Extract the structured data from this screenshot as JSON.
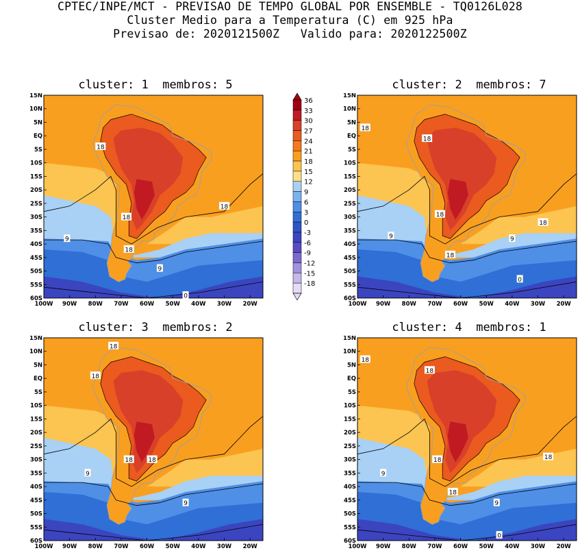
{
  "header": {
    "line1": "CPTEC/INPE/MCT - PREVISAO DE TEMPO GLOBAL POR ENSEMBLE - TQ0126L028",
    "line2": "Cluster Medio para a Temperatura (C) em 925 hPa",
    "line3": "Previsao de: 2020121500Z   Valido para: 2020122500Z"
  },
  "panels": [
    {
      "title": "cluster: 1  membros: 5",
      "contour_labels": [
        "18",
        "18",
        "18",
        "18",
        "9",
        "9",
        "0"
      ]
    },
    {
      "title": "cluster: 2  membros: 7",
      "contour_labels": [
        "18",
        "18",
        "18",
        "18",
        "18",
        "9",
        "9",
        "0"
      ]
    },
    {
      "title": "cluster: 3  membros: 2",
      "contour_labels": [
        "18",
        "18",
        "18",
        "18",
        "9",
        "9"
      ]
    },
    {
      "title": "cluster: 4  membros: 1",
      "contour_labels": [
        "18",
        "18",
        "18",
        "18",
        "18",
        "9",
        "9",
        "0"
      ]
    }
  ],
  "lat_labels": [
    "15N",
    "10N",
    "5N",
    "EQ",
    "5S",
    "10S",
    "15S",
    "20S",
    "25S",
    "30S",
    "35S",
    "40S",
    "45S",
    "50S",
    "55S",
    "60S"
  ],
  "lon_labels": [
    "100W",
    "90W",
    "80W",
    "70W",
    "60W",
    "50W",
    "40W",
    "30W",
    "20W"
  ],
  "colorbar": {
    "labels": [
      "36",
      "33",
      "30",
      "27",
      "24",
      "21",
      "18",
      "15",
      "12",
      "9",
      "6",
      "3",
      "0",
      "-3",
      "-6",
      "-9",
      "-12",
      "-15",
      "-18"
    ],
    "colors": [
      "#a00012",
      "#c11a22",
      "#d8402a",
      "#eb5a1e",
      "#f5791c",
      "#f99f1f",
      "#fcc450",
      "#fde08a",
      "#a9d0f5",
      "#7bb3ee",
      "#4f8fe6",
      "#2f6fd6",
      "#2c55c8",
      "#3b45c0",
      "#5a4ac4",
      "#7d6ad0",
      "#a291de",
      "#c5b8ec",
      "#e6dcf6"
    ]
  },
  "field_colors": {
    "ocean_warm": "#f99f1f",
    "ocean_mid": "#fcc450",
    "ocean_cool": "#a9d0f5",
    "cold1": "#4f8fe6",
    "cold2": "#2f6fd6",
    "cold3": "#3b45c0",
    "land_hot": "#eb5a1e",
    "land_hotter": "#d8402a",
    "land_hottest": "#c11a22",
    "border": "#a0a0a0"
  }
}
